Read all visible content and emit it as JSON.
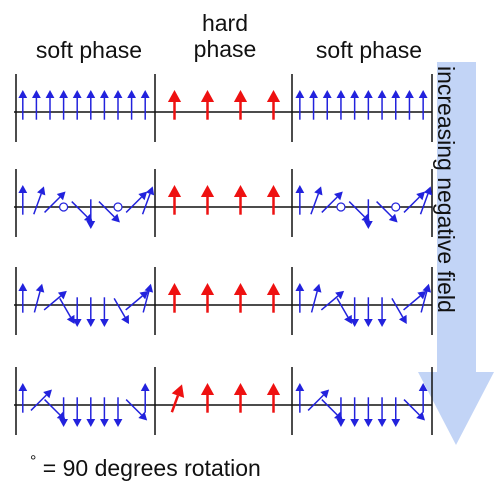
{
  "labels": {
    "soft_left": "soft phase",
    "hard_line1": "hard",
    "hard_line2": "phase",
    "soft_right": "soft phase"
  },
  "side_label": "increasing negative field",
  "legend": {
    "symbol": "°",
    "text": "= 90 degrees rotation"
  },
  "colors": {
    "soft": "#2222dd",
    "hard": "#ee1111",
    "axis": "#111111",
    "arrow_bg": "#8fb0ee"
  },
  "rows": [
    {
      "soft_dirs": [
        90,
        90,
        90,
        90,
        90,
        90,
        90,
        90,
        90,
        90
      ],
      "hard_dirs": [
        90,
        90,
        90,
        90
      ]
    },
    {
      "soft_dirs": [
        90,
        70,
        45,
        0,
        -45,
        -90,
        -45,
        0,
        45,
        70
      ],
      "hard_dirs": [
        90,
        90,
        90,
        90
      ]
    },
    {
      "soft_dirs": [
        90,
        75,
        40,
        -60,
        -90,
        -90,
        -90,
        -60,
        40,
        75
      ],
      "hard_dirs": [
        90,
        90,
        90,
        90
      ]
    },
    {
      "soft_dirs": [
        90,
        45,
        -45,
        -90,
        -90,
        -90,
        -90,
        -90,
        -45,
        90
      ],
      "hard_dirs": [
        70,
        90,
        90,
        90
      ]
    }
  ]
}
